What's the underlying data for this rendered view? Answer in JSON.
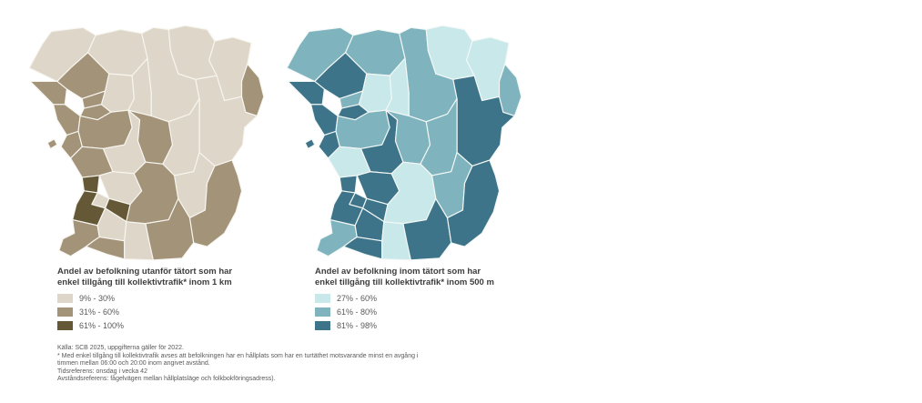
{
  "page": {
    "background": "#ffffff"
  },
  "maps": [
    {
      "id": "outside-tatort",
      "title_line1": "Andel av befolkning utanför tätort som har",
      "title_line2": "enkel tillgång till kollektivtrafik* inom 1 km",
      "border_color": "#f7f5ef",
      "legend": [
        {
          "label": "9% - 30%",
          "color": "#ded7c9"
        },
        {
          "label": "31% - 60%",
          "color": "#a29379"
        },
        {
          "label": "61% - 100%",
          "color": "#655837"
        }
      ],
      "region_levels": {
        "bastad": 1,
        "angelholm": 2,
        "orkelljunga": 1,
        "perstorp": 1,
        "klippan": 1,
        "hassleholm": 1,
        "osby": 1,
        "ostra_goinge": 1,
        "bromolla": 2,
        "kristianstad": 1,
        "hoganas": 2,
        "helsingborg": 2,
        "astorp": 2,
        "bjuv": 2,
        "svalov": 2,
        "landskrona": 2,
        "ven": 2,
        "kavlinge": 2,
        "eslov": 1,
        "hoor": 2,
        "horby": 1,
        "lund": 1,
        "lomma": 3,
        "burlov": 1,
        "staffanstorp": 3,
        "malmo": 3,
        "vellinge": 2,
        "svedala": 1,
        "trelleborg": 2,
        "skurup": 1,
        "sjobo": 2,
        "ystad": 2,
        "tomelilla": 1,
        "simrishamn": 2
      }
    },
    {
      "id": "inside-tatort",
      "title_line1": "Andel av befolkning inom tätort som har",
      "title_line2": "enkel tillgång till kollektivtrafik* inom 500 m",
      "border_color": "#f3f8f7",
      "legend": [
        {
          "label": "27% - 60%",
          "color": "#c9e8e9"
        },
        {
          "label": "61% - 80%",
          "color": "#7fb4be"
        },
        {
          "label": "81% - 98%",
          "color": "#3e7489"
        }
      ],
      "region_levels": {
        "bastad": 2,
        "angelholm": 3,
        "orkelljunga": 2,
        "perstorp": 1,
        "klippan": 1,
        "hassleholm": 2,
        "osby": 1,
        "ostra_goinge": 1,
        "bromolla": 2,
        "kristianstad": 3,
        "hoganas": 3,
        "helsingborg": 3,
        "astorp": 2,
        "bjuv": 3,
        "svalov": 2,
        "landskrona": 3,
        "ven": 3,
        "kavlinge": 1,
        "eslov": 3,
        "hoor": 2,
        "horby": 2,
        "lund": 3,
        "lomma": 3,
        "burlov": 3,
        "staffanstorp": 3,
        "malmo": 3,
        "vellinge": 2,
        "svedala": 3,
        "trelleborg": 3,
        "skurup": 1,
        "sjobo": 1,
        "ystad": 3,
        "tomelilla": 2,
        "simrishamn": 3
      }
    }
  ],
  "footnotes": [
    "Källa: SCB 2025, uppgifterna gäller för 2022.",
    "* Med enkel tillgång till kollektivtrafik avses att befolkningen har en hållplats som har en turtäthet motsvarande minst en avgång i",
    "timmen mellan 06:00 och 20:00 inom angivet avstånd.",
    "Tidsreferens: onsdag i vecka 42",
    "Avståndsreferens: fågelvägen mellan hållplatsläge och folkbokföringsadress)."
  ]
}
